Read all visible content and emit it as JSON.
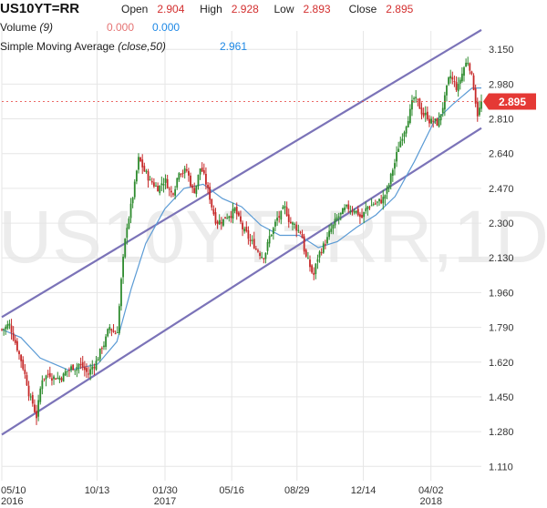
{
  "header": {
    "symbol": "US10YT=RR",
    "open_label": "Open",
    "open_value": "2.904",
    "high_label": "High",
    "high_value": "2.928",
    "low_label": "Low",
    "low_value": "2.893",
    "close_label": "Close",
    "close_value": "2.895",
    "volume_label": "Volume",
    "volume_param": "(9)",
    "volume_value_1": "0.000",
    "volume_value_2": "0.000",
    "sma_label": "Simple Moving Average",
    "sma_param": "(close,50)",
    "sma_value": "2.961"
  },
  "watermark": "US10YT=RR,1D",
  "price_badge": "2.895",
  "colors": {
    "up": "#2e8b2e",
    "down": "#c62828",
    "sma": "#5b9bd5",
    "channel": "#7b73b8",
    "badge": "#e53935",
    "grid": "#e6e6e6",
    "watermark": "#ececec"
  },
  "chart_data": {
    "type": "candlestick",
    "y_ticks": [
      "3.150",
      "2.980",
      "2.810",
      "2.640",
      "2.470",
      "2.300",
      "2.130",
      "1.960",
      "1.790",
      "1.620",
      "1.450",
      "1.280",
      "1.110"
    ],
    "ylim": [
      1.04,
      3.24
    ],
    "x_ticks": [
      {
        "label": "05/10",
        "year": "2016",
        "t": 0.0
      },
      {
        "label": "10/13",
        "year": "",
        "t": 0.1986
      },
      {
        "label": "01/30",
        "year": "2017",
        "t": 0.3403
      },
      {
        "label": "05/16",
        "year": "",
        "t": 0.4794
      },
      {
        "label": "08/29",
        "year": "",
        "t": 0.6155
      },
      {
        "label": "12/14",
        "year": "",
        "t": 0.7539
      },
      {
        "label": "04/02",
        "year": "2018",
        "t": 0.8949
      }
    ],
    "close_path": [
      [
        0.0,
        1.78
      ],
      [
        0.015,
        1.8
      ],
      [
        0.03,
        1.72
      ],
      [
        0.045,
        1.6
      ],
      [
        0.06,
        1.45
      ],
      [
        0.072,
        1.36
      ],
      [
        0.085,
        1.55
      ],
      [
        0.1,
        1.57
      ],
      [
        0.12,
        1.55
      ],
      [
        0.14,
        1.58
      ],
      [
        0.16,
        1.62
      ],
      [
        0.18,
        1.56
      ],
      [
        0.195,
        1.62
      ],
      [
        0.21,
        1.7
      ],
      [
        0.225,
        1.78
      ],
      [
        0.24,
        1.76
      ],
      [
        0.25,
        2.05
      ],
      [
        0.262,
        2.3
      ],
      [
        0.275,
        2.45
      ],
      [
        0.285,
        2.6
      ],
      [
        0.298,
        2.55
      ],
      [
        0.31,
        2.5
      ],
      [
        0.325,
        2.48
      ],
      [
        0.34,
        2.52
      ],
      [
        0.355,
        2.44
      ],
      [
        0.37,
        2.58
      ],
      [
        0.385,
        2.56
      ],
      [
        0.4,
        2.45
      ],
      [
        0.415,
        2.58
      ],
      [
        0.43,
        2.45
      ],
      [
        0.445,
        2.33
      ],
      [
        0.46,
        2.32
      ],
      [
        0.475,
        2.36
      ],
      [
        0.485,
        2.37
      ],
      [
        0.5,
        2.27
      ],
      [
        0.515,
        2.21
      ],
      [
        0.53,
        2.18
      ],
      [
        0.545,
        2.15
      ],
      [
        0.56,
        2.24
      ],
      [
        0.575,
        2.32
      ],
      [
        0.59,
        2.35
      ],
      [
        0.6,
        2.32
      ],
      [
        0.612,
        2.28
      ],
      [
        0.625,
        2.26
      ],
      [
        0.632,
        2.16
      ],
      [
        0.642,
        2.08
      ],
      [
        0.65,
        2.04
      ],
      [
        0.66,
        2.14
      ],
      [
        0.672,
        2.2
      ],
      [
        0.69,
        2.27
      ],
      [
        0.705,
        2.33
      ],
      [
        0.72,
        2.35
      ],
      [
        0.735,
        2.38
      ],
      [
        0.75,
        2.33
      ],
      [
        0.765,
        2.38
      ],
      [
        0.775,
        2.4
      ],
      [
        0.79,
        2.4
      ],
      [
        0.805,
        2.46
      ],
      [
        0.818,
        2.58
      ],
      [
        0.832,
        2.71
      ],
      [
        0.848,
        2.85
      ],
      [
        0.86,
        2.9
      ],
      [
        0.872,
        2.85
      ],
      [
        0.885,
        2.83
      ],
      [
        0.898,
        2.8
      ],
      [
        0.91,
        2.78
      ],
      [
        0.92,
        2.88
      ],
      [
        0.935,
        3.0
      ],
      [
        0.95,
        2.95
      ],
      [
        0.965,
        3.07
      ],
      [
        0.974,
        3.1
      ],
      [
        0.983,
        2.98
      ],
      [
        0.992,
        2.85
      ],
      [
        1.0,
        2.89
      ]
    ],
    "sma": [
      [
        0.0,
        1.78
      ],
      [
        0.04,
        1.74
      ],
      [
        0.08,
        1.64
      ],
      [
        0.14,
        1.58
      ],
      [
        0.2,
        1.61
      ],
      [
        0.24,
        1.72
      ],
      [
        0.27,
        1.98
      ],
      [
        0.3,
        2.2
      ],
      [
        0.34,
        2.37
      ],
      [
        0.38,
        2.47
      ],
      [
        0.42,
        2.49
      ],
      [
        0.46,
        2.42
      ],
      [
        0.5,
        2.38
      ],
      [
        0.54,
        2.29
      ],
      [
        0.58,
        2.24
      ],
      [
        0.62,
        2.24
      ],
      [
        0.66,
        2.18
      ],
      [
        0.7,
        2.21
      ],
      [
        0.74,
        2.28
      ],
      [
        0.78,
        2.34
      ],
      [
        0.82,
        2.43
      ],
      [
        0.86,
        2.6
      ],
      [
        0.9,
        2.79
      ],
      [
        0.94,
        2.88
      ],
      [
        0.98,
        2.96
      ],
      [
        1.0,
        2.961
      ]
    ],
    "channel_upper": [
      [
        0.0,
        1.84
      ],
      [
        1.0,
        3.245
      ]
    ],
    "channel_lower": [
      [
        0.0,
        1.265
      ],
      [
        1.0,
        2.765
      ]
    ],
    "last_close": 2.895
  }
}
